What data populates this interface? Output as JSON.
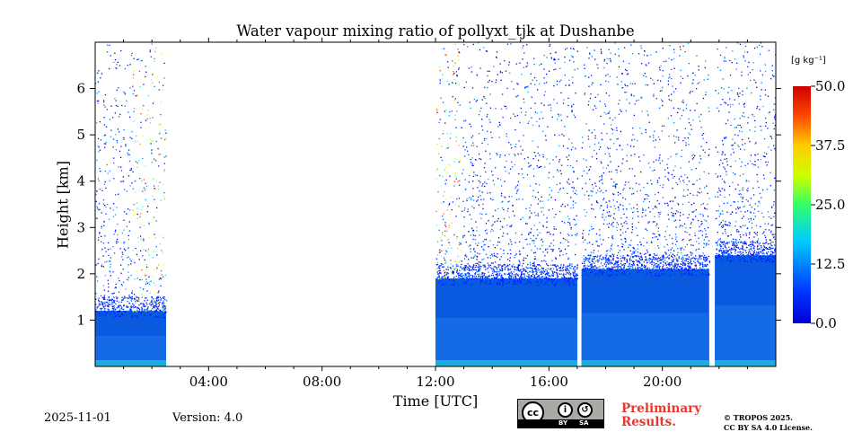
{
  "chart_data": {
    "type": "heatmap",
    "title": "Water vapour mixing ratio of pollyxt_tjk at Dushanbe",
    "xlabel": "Time [UTC]",
    "ylabel": "Height [km]",
    "x_range_hours": [
      0,
      24
    ],
    "y_range_km": [
      0,
      7
    ],
    "x_ticks": [
      {
        "hour": 4,
        "label": "04:00"
      },
      {
        "hour": 8,
        "label": "08:00"
      },
      {
        "hour": 12,
        "label": "12:00"
      },
      {
        "hour": 16,
        "label": "16:00"
      },
      {
        "hour": 20,
        "label": "20:00"
      }
    ],
    "y_ticks": [
      {
        "km": 1,
        "label": "1"
      },
      {
        "km": 2,
        "label": "2"
      },
      {
        "km": 3,
        "label": "3"
      },
      {
        "km": 4,
        "label": "4"
      },
      {
        "km": 5,
        "label": "5"
      },
      {
        "km": 6,
        "label": "6"
      }
    ],
    "colorbar": {
      "unit": "[g kg⁻¹]",
      "range": [
        0,
        50
      ],
      "ticks": [
        "0.0",
        "12.5",
        "25.0",
        "37.5",
        "50.0"
      ],
      "colormap": "jet"
    },
    "measurement_periods_hours": [
      [
        0,
        2.5
      ],
      [
        12,
        17.0
      ],
      [
        17.15,
        21.65
      ],
      [
        21.85,
        24
      ]
    ],
    "dense_layer_top_km": [
      {
        "start": 0,
        "end": 2.5,
        "top": 1.2
      },
      {
        "start": 12,
        "end": 17.0,
        "top": 1.9
      },
      {
        "start": 17.15,
        "end": 21.65,
        "top": 2.1
      },
      {
        "start": 21.85,
        "end": 24,
        "top": 2.4
      }
    ],
    "high_value_zones_hours": [
      [
        1.3,
        2.5
      ],
      [
        12,
        12.9
      ]
    ]
  },
  "footer": {
    "date": "2025-11-01",
    "version": "Version: 4.0",
    "preliminary_line1": "Preliminary",
    "preliminary_line2": "Results.",
    "copyright_line1": "© TROPOS 2025.",
    "copyright_line2": "CC BY SA 4.0 License.",
    "cc_badge": {
      "cc": "cc",
      "by": "BY",
      "sa": "SA"
    }
  }
}
